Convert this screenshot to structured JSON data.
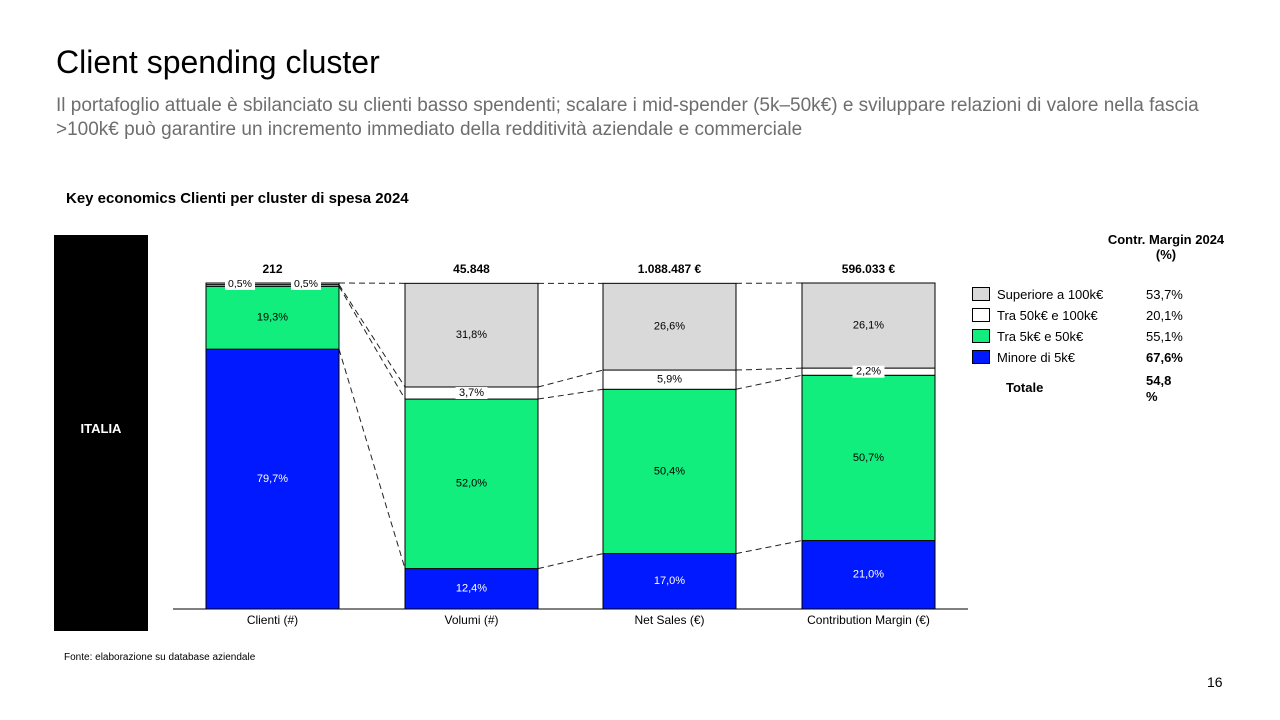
{
  "slide": {
    "title": "Client spending cluster",
    "subtitle": "Il portafoglio attuale è sbilanciato su clienti basso spendenti; scalare i mid-spender (5k–50k€) e sviluppare relazioni di valore nella fascia >100k€ può garantire un incremento immediato della redditività aziendale e commerciale",
    "chart_heading": "Key economics Clienti per cluster di spesa 2024",
    "region_label": "ITALIA",
    "source": "Fonte: elaborazione su database aziendale",
    "page_number": "16"
  },
  "chart_data": {
    "type": "bar",
    "stacked": "100%",
    "title": "Key economics Clienti per cluster di spesa 2024",
    "categories": [
      "Clienti (#)",
      "Volumi (#)",
      "Net Sales (€)",
      "Contribution Margin (€)"
    ],
    "totals": [
      "212",
      "45.848",
      "1.088.487 €",
      "596.033 €"
    ],
    "series": [
      {
        "name": "Minore di 5k€",
        "color": "#0019ff",
        "values": [
          79.7,
          12.4,
          17.0,
          21.0
        ],
        "labels": [
          "79,7%",
          "12,4%",
          "17,0%",
          "21,0%"
        ]
      },
      {
        "name": "Tra 5k€ e 50k€",
        "color": "#12ee7e",
        "values": [
          19.3,
          52.0,
          50.4,
          50.7
        ],
        "labels": [
          "19,3%",
          "52,0%",
          "50,4%",
          "50,7%"
        ]
      },
      {
        "name": "Tra 50k€ e 100k€",
        "color": "#ffffff",
        "values": [
          0.5,
          3.7,
          5.9,
          2.2
        ],
        "labels": [
          "0,5%",
          "3,7%",
          "5,9%",
          "2,2%"
        ]
      },
      {
        "name": "Superiore a 100k€",
        "color": "#d9d9d9",
        "values": [
          0.5,
          31.8,
          26.6,
          26.1
        ],
        "labels": [
          "0,5%",
          "31,8%",
          "26,6%",
          "26,1%"
        ]
      }
    ],
    "ylim": [
      0,
      100
    ],
    "grid": false,
    "legend_position": "right"
  },
  "legend": {
    "header": "Contr. Margin 2024 (%)",
    "items": [
      {
        "label": "Superiore a 100k€",
        "value": "53,7%",
        "color": "#d9d9d9"
      },
      {
        "label": "Tra 50k€ e 100k€",
        "value": "20,1%",
        "color": "#ffffff"
      },
      {
        "label": "Tra 5k€ e 50k€",
        "value": "55,1%",
        "color": "#12ee7e"
      },
      {
        "label": "Minore di 5k€",
        "value": "67,6%",
        "color": "#0019ff",
        "bold": true
      }
    ],
    "total_label": "Totale",
    "total_value": "54,8 %"
  }
}
